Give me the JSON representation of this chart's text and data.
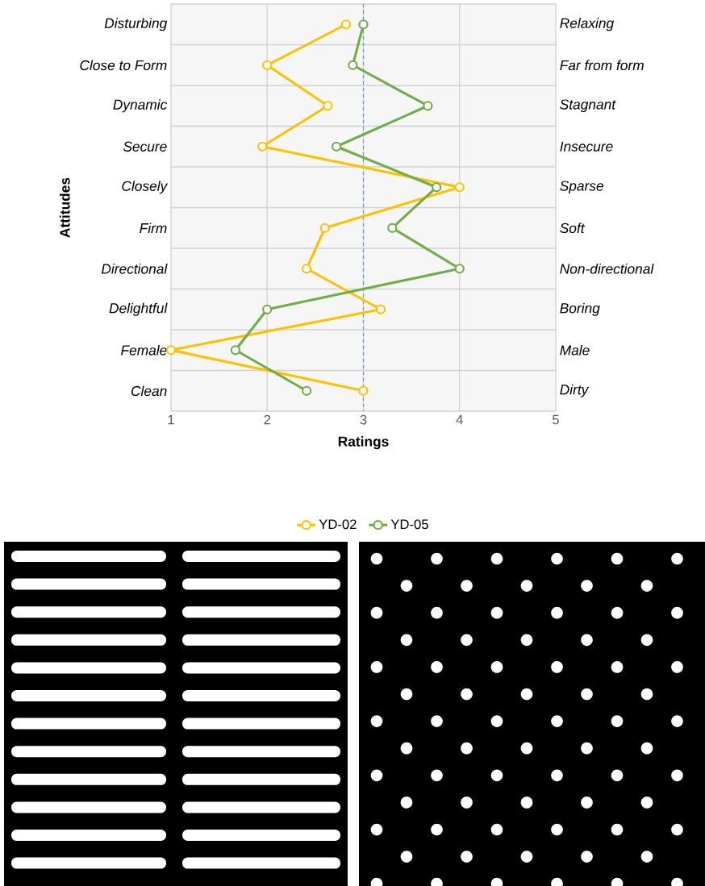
{
  "chart_data": {
    "type": "line",
    "orientation": "horizontal",
    "xlabel": "Ratings",
    "ylabel": "Attitudes",
    "categories": [
      "Disturbing",
      "Close to Form",
      "Dynamic",
      "Secure",
      "Closely",
      "Firm",
      "Directional",
      "Delightful",
      "Female",
      "Clean"
    ],
    "y2_categories": [
      "Relaxing",
      "Far from form",
      "Stagnant",
      "Insecure",
      "Sparse",
      "Soft",
      "Non-directional",
      "Boring",
      "Male",
      "Dirty"
    ],
    "xlim": [
      1,
      5
    ],
    "xticks": [
      1,
      2,
      3,
      4,
      5
    ],
    "grid": true,
    "legend": "bottom",
    "marker": "circle",
    "line_style": "solid",
    "ref_lines": [
      {
        "axis": "x",
        "value": 3,
        "color": "#5b9bd5",
        "line_style": "dashed"
      }
    ],
    "series": [
      {
        "name": "YD-02",
        "color": "#ffc000",
        "values": [
          2.82,
          2.0,
          2.63,
          1.95,
          4.0,
          2.6,
          2.41,
          3.18,
          1.0,
          3.0
        ]
      },
      {
        "name": "YD-05",
        "color": "#70ad47",
        "values": [
          3.0,
          2.89,
          3.67,
          2.72,
          3.76,
          3.3,
          4.0,
          2.0,
          1.67,
          2.41
        ]
      }
    ]
  }
}
